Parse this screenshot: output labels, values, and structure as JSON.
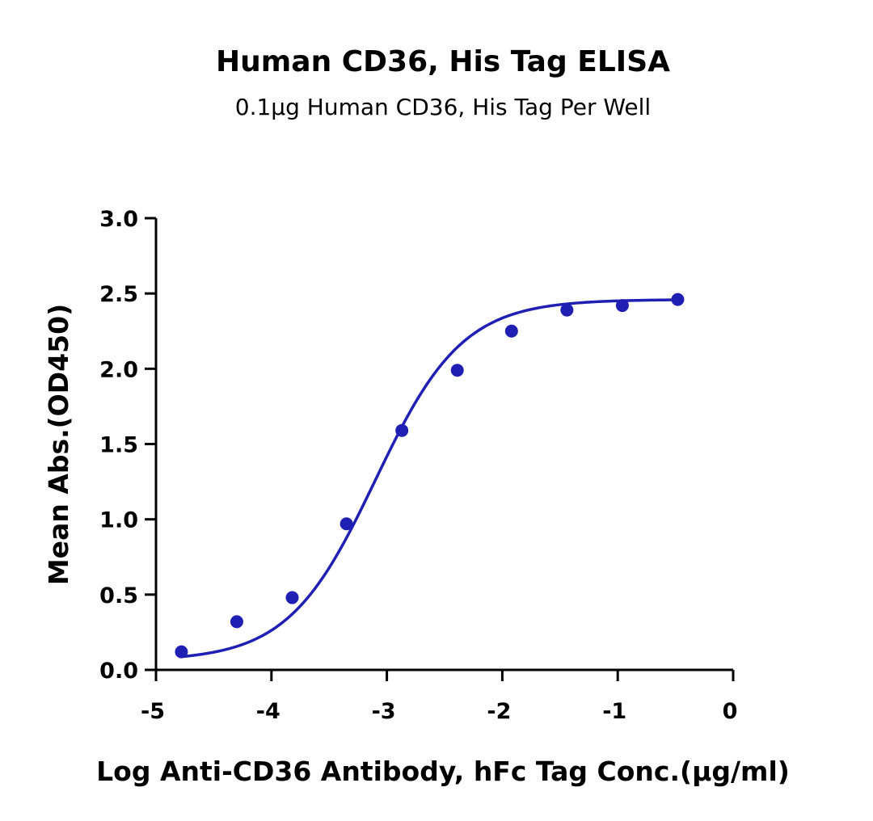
{
  "chart_data": {
    "type": "scatter",
    "title": "Human CD36, His Tag ELISA",
    "subtitle": "0.1µg Human CD36, His Tag Per Well",
    "xlabel": "Log Anti-CD36 Antibody, hFc Tag Conc.(µg/ml)",
    "ylabel": "Mean Abs.(OD450)",
    "xlim": [
      -5,
      0
    ],
    "ylim": [
      0,
      3
    ],
    "x_ticks": [
      "-5",
      "-4",
      "-3",
      "-2",
      "-1",
      "0"
    ],
    "y_ticks": [
      "0.0",
      "0.5",
      "1.0",
      "1.5",
      "2.0",
      "2.5",
      "3.0"
    ],
    "grid": false,
    "colors": {
      "series": "#1f1fb4",
      "axis": "#000000"
    },
    "series": [
      {
        "points": {
          "x": [
            -4.78,
            -4.3,
            -3.82,
            -3.35,
            -2.87,
            -2.39,
            -1.92,
            -1.44,
            -0.96,
            -0.48
          ],
          "y": [
            0.12,
            0.32,
            0.48,
            0.97,
            1.59,
            1.99,
            2.25,
            2.39,
            2.42,
            2.46
          ]
        },
        "fit_curve": {
          "model": "4PL",
          "bottom": 0.06,
          "top": 2.46,
          "log_ec50": -3.1,
          "hill_slope": 1.15
        }
      }
    ]
  }
}
